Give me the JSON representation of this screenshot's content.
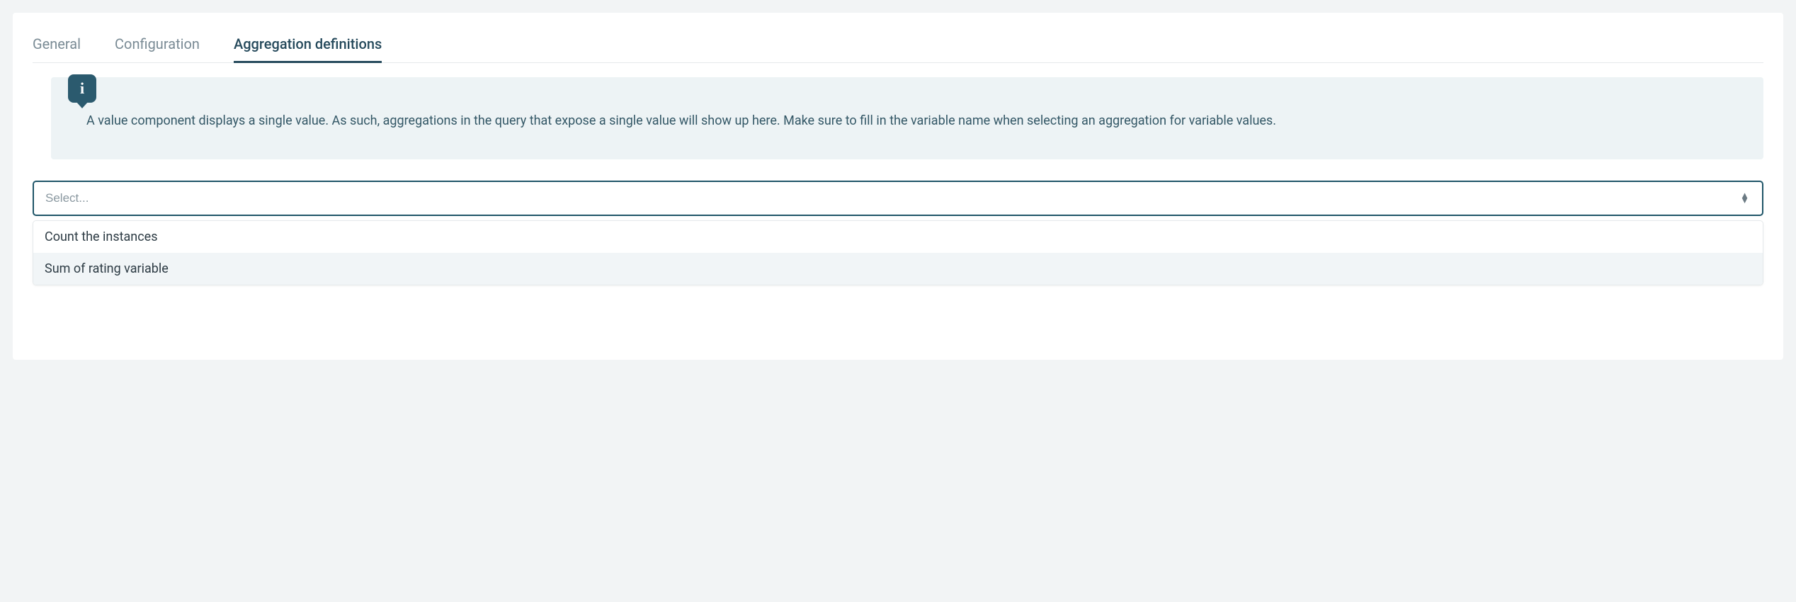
{
  "tabs": [
    {
      "label": "General",
      "active": false
    },
    {
      "label": "Configuration",
      "active": false
    },
    {
      "label": "Aggregation definitions",
      "active": true
    }
  ],
  "info": {
    "icon_label": "i",
    "text": "A value component displays a single value. As such, aggregations in the query that expose a single value will show up here. Make sure to fill in the variable name when selecting an aggregation for variable values."
  },
  "select": {
    "placeholder": "Select...",
    "value": "",
    "options": [
      {
        "label": "Count the instances",
        "highlighted": false
      },
      {
        "label": "Sum of rating variable",
        "highlighted": true
      }
    ]
  }
}
